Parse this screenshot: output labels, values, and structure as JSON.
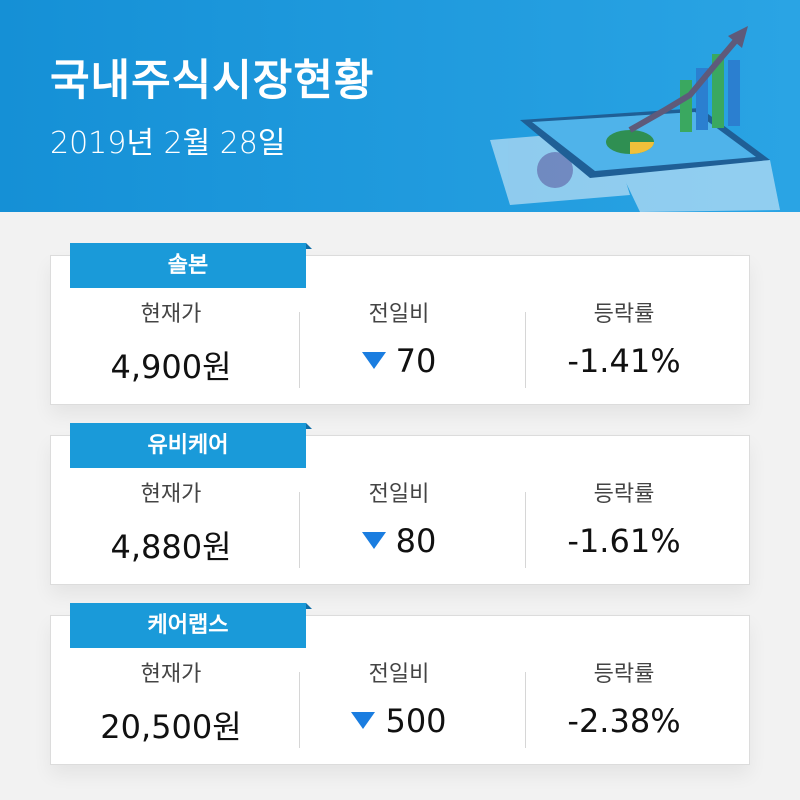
{
  "header": {
    "title": "국내주식시장현황",
    "date": "2019년 2월 28일"
  },
  "columns": [
    "현재가",
    "전일비",
    "등락률"
  ],
  "stocks": [
    {
      "name": "솔본",
      "price": "4,900원",
      "change": 70,
      "rate": "-1.41%"
    },
    {
      "name": "유비케어",
      "price": "4,880원",
      "change": 80,
      "rate": "-1.61%"
    },
    {
      "name": "케어랩스",
      "price": "20,500원",
      "change": 500,
      "rate": "-2.38%"
    }
  ]
}
